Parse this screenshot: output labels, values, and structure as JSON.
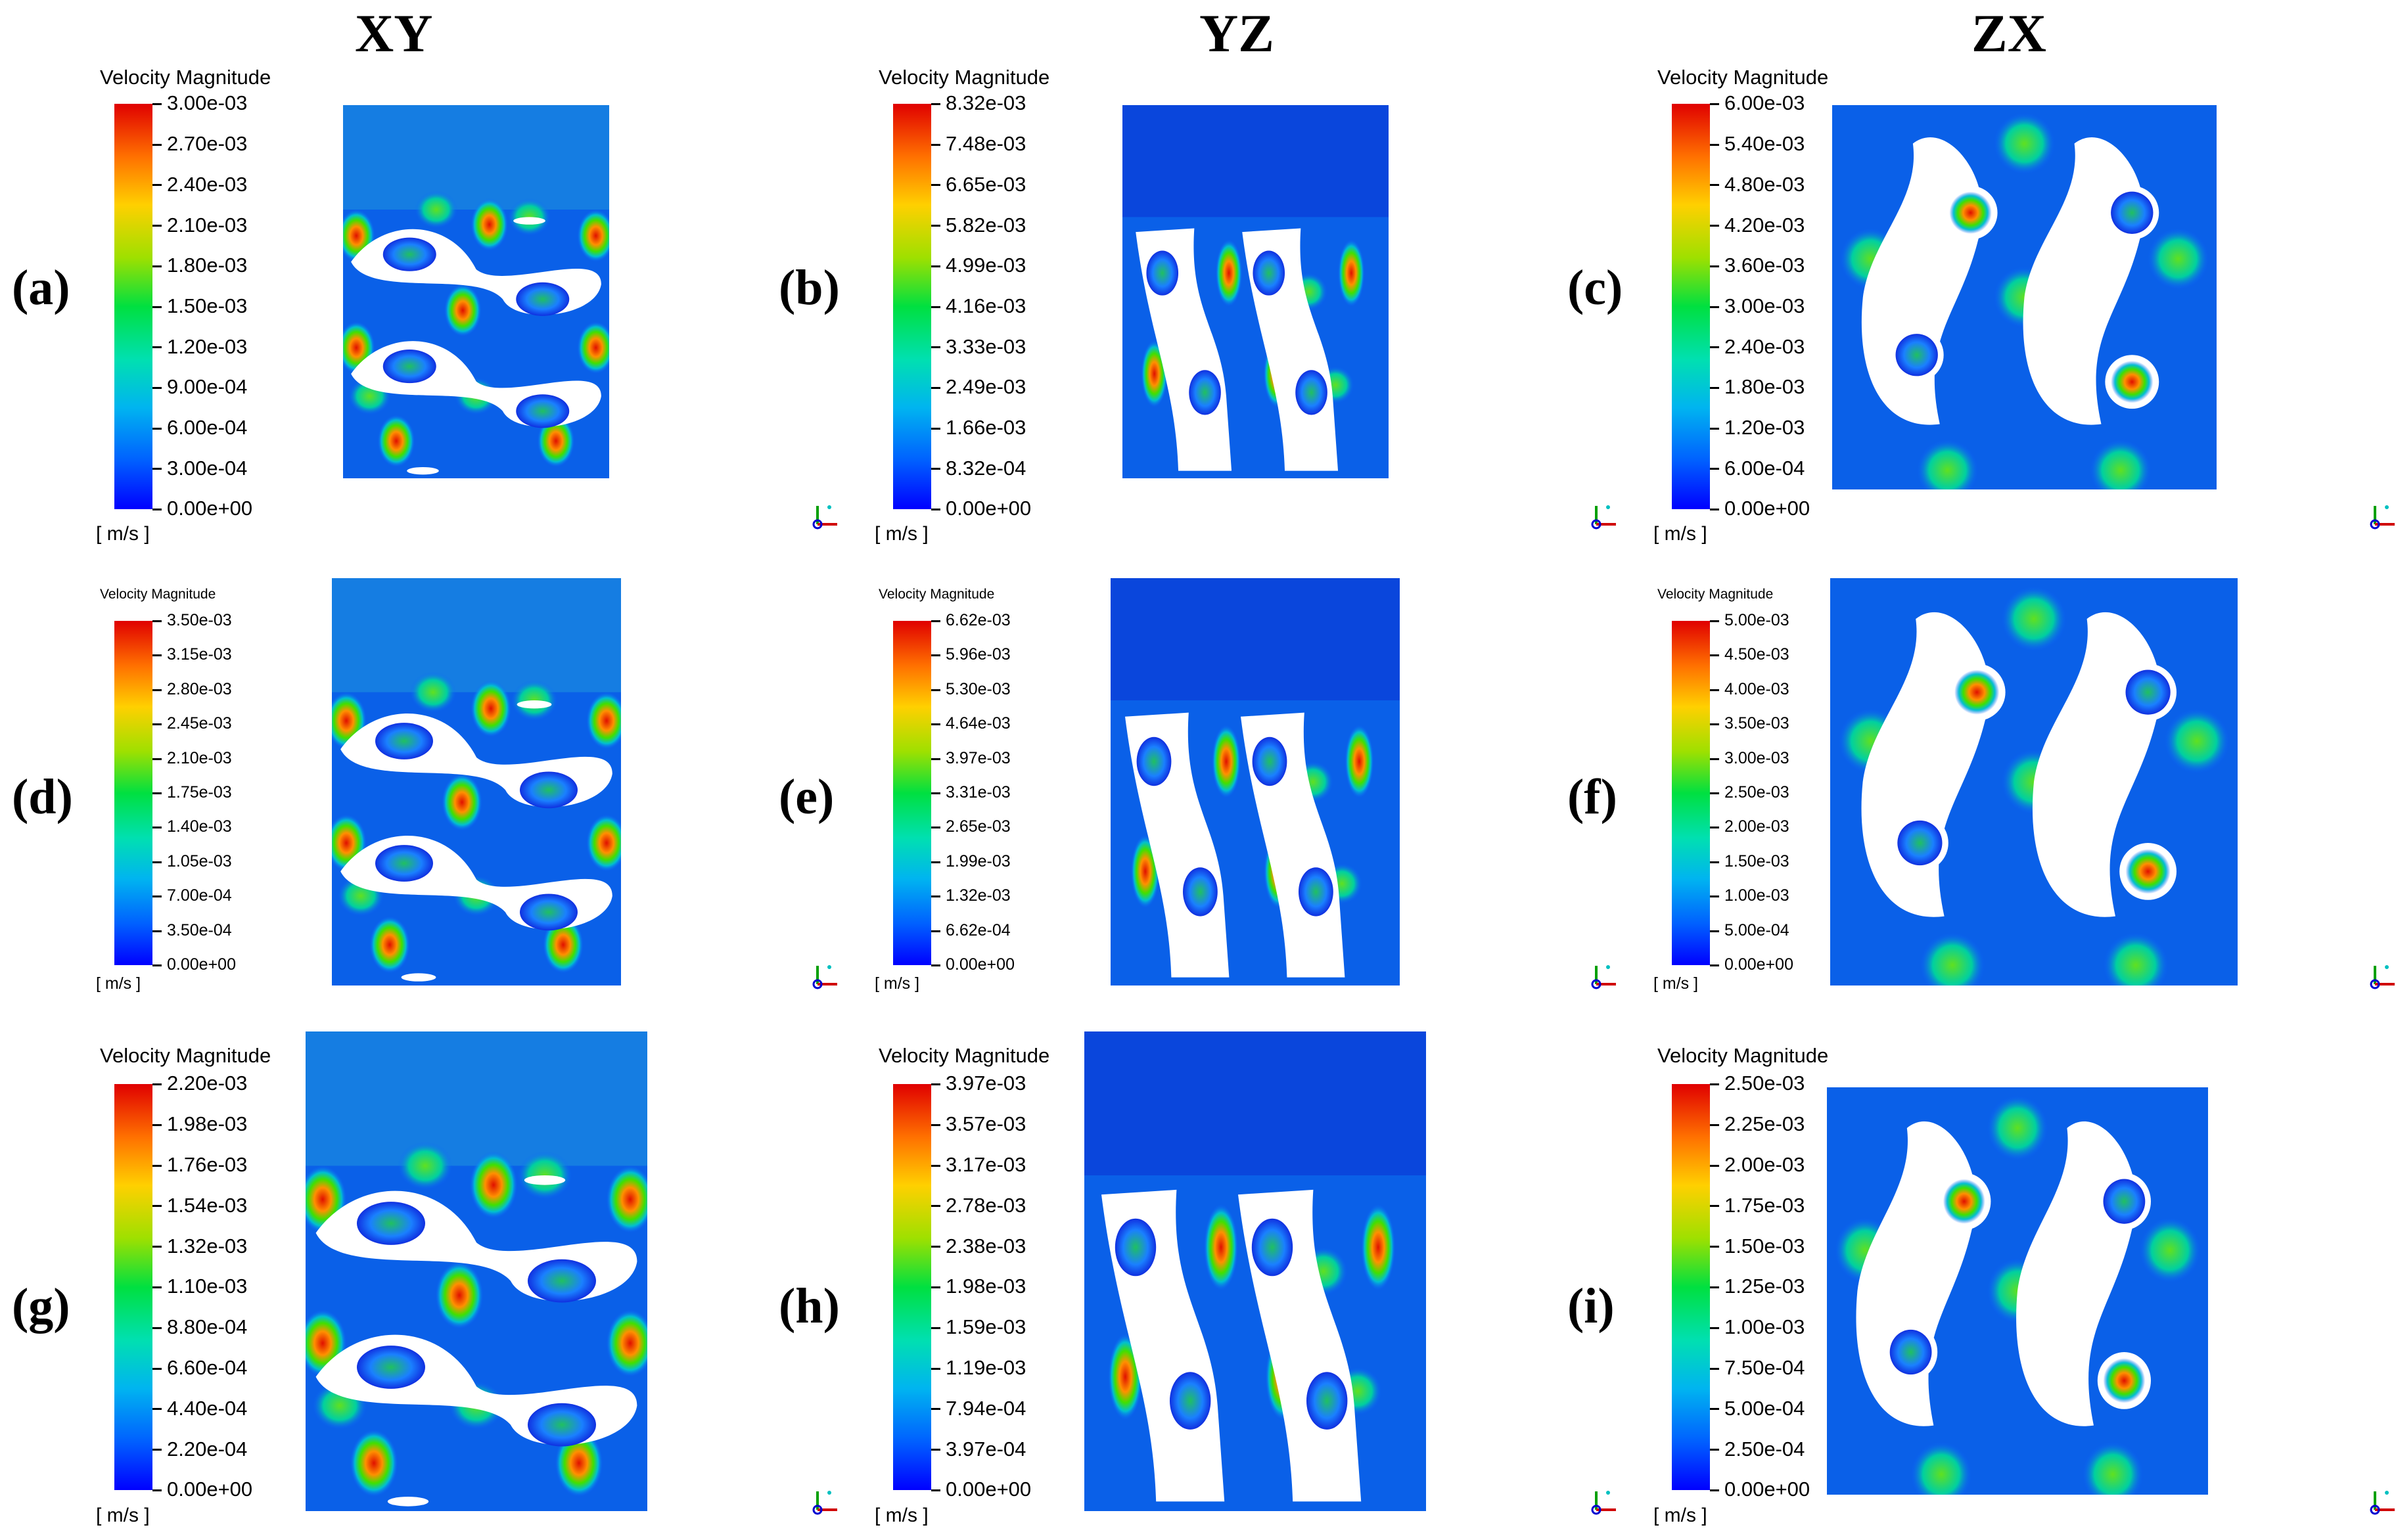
{
  "columns": [
    "XY",
    "YZ",
    "ZX"
  ],
  "legend_title": "Velocity Magnitude",
  "unit": "[ m/s ]",
  "axis_icon": "axis-triad-icon",
  "colors": {
    "low": "#0000ff",
    "mid": "#00e040",
    "high": "#e00000",
    "solid": "#ffffff"
  },
  "panels": [
    {
      "label": "(a)",
      "plane": "XY",
      "ticks": [
        "3.00e-03",
        "2.70e-03",
        "2.40e-03",
        "2.10e-03",
        "1.80e-03",
        "1.50e-03",
        "1.20e-03",
        "9.00e-04",
        "6.00e-04",
        "3.00e-04",
        "0.00e+00"
      ]
    },
    {
      "label": "(b)",
      "plane": "YZ",
      "ticks": [
        "8.32e-03",
        "7.48e-03",
        "6.65e-03",
        "5.82e-03",
        "4.99e-03",
        "4.16e-03",
        "3.33e-03",
        "2.49e-03",
        "1.66e-03",
        "8.32e-04",
        "0.00e+00"
      ]
    },
    {
      "label": "(c)",
      "plane": "ZX",
      "ticks": [
        "6.00e-03",
        "5.40e-03",
        "4.80e-03",
        "4.20e-03",
        "3.60e-03",
        "3.00e-03",
        "2.40e-03",
        "1.80e-03",
        "1.20e-03",
        "6.00e-04",
        "0.00e+00"
      ]
    },
    {
      "label": "(d)",
      "plane": "XY",
      "ticks": [
        "3.50e-03",
        "3.15e-03",
        "2.80e-03",
        "2.45e-03",
        "2.10e-03",
        "1.75e-03",
        "1.40e-03",
        "1.05e-03",
        "7.00e-04",
        "3.50e-04",
        "0.00e+00"
      ]
    },
    {
      "label": "(e)",
      "plane": "YZ",
      "ticks": [
        "6.62e-03",
        "5.96e-03",
        "5.30e-03",
        "4.64e-03",
        "3.97e-03",
        "3.31e-03",
        "2.65e-03",
        "1.99e-03",
        "1.32e-03",
        "6.62e-04",
        "0.00e+00"
      ]
    },
    {
      "label": "(f)",
      "plane": "ZX",
      "ticks": [
        "5.00e-03",
        "4.50e-03",
        "4.00e-03",
        "3.50e-03",
        "3.00e-03",
        "2.50e-03",
        "2.00e-03",
        "1.50e-03",
        "1.00e-03",
        "5.00e-04",
        "0.00e+00"
      ]
    },
    {
      "label": "(g)",
      "plane": "XY",
      "ticks": [
        "2.20e-03",
        "1.98e-03",
        "1.76e-03",
        "1.54e-03",
        "1.32e-03",
        "1.10e-03",
        "8.80e-04",
        "6.60e-04",
        "4.40e-04",
        "2.20e-04",
        "0.00e+00"
      ]
    },
    {
      "label": "(h)",
      "plane": "YZ",
      "ticks": [
        "3.97e-03",
        "3.57e-03",
        "3.17e-03",
        "2.78e-03",
        "2.38e-03",
        "1.98e-03",
        "1.59e-03",
        "1.19e-03",
        "7.94e-04",
        "3.97e-04",
        "0.00e+00"
      ]
    },
    {
      "label": "(i)",
      "plane": "ZX",
      "ticks": [
        "2.50e-03",
        "2.25e-03",
        "2.00e-03",
        "1.75e-03",
        "1.50e-03",
        "1.25e-03",
        "1.00e-03",
        "7.50e-04",
        "5.00e-04",
        "2.50e-04",
        "0.00e+00"
      ]
    }
  ]
}
